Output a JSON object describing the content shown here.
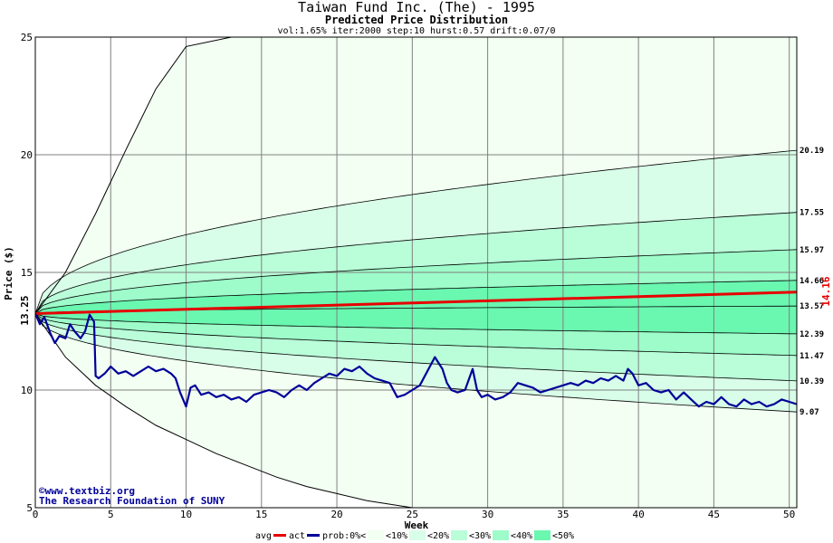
{
  "chart_data": {
    "type": "area",
    "title": "Taiwan Fund Inc. (The) - 1995",
    "subtitle": "Predicted Price Distribution",
    "params": "vol:1.65% iter:2000 step:10 hurst:0.57 drift:0.07/0",
    "xlabel": "Week",
    "ylabel": "Price ($)",
    "xlim": [
      0,
      50.5
    ],
    "ylim": [
      5,
      25
    ],
    "x_ticks": [
      0,
      5,
      10,
      15,
      20,
      25,
      30,
      35,
      40,
      45,
      50
    ],
    "y_ticks": [
      5,
      10,
      15,
      20,
      25
    ],
    "start_price": "13.25",
    "end_avg_price": "14.16",
    "grid": true,
    "percentile_bands": [
      {
        "label": "<10%",
        "color": "#f2fff2"
      },
      {
        "label": "<20%",
        "color": "#d8fde8"
      },
      {
        "label": "<30%",
        "color": "#bafdd9"
      },
      {
        "label": "<40%",
        "color": "#9dfcc9"
      },
      {
        "label": "<50%",
        "color": "#6af7b0"
      }
    ],
    "percentile_lines": [
      {
        "end": 25.0,
        "rate": 0.25,
        "clip": true
      },
      {
        "end": 20.19,
        "label": "20.19",
        "rate": 0.45
      },
      {
        "end": 17.55,
        "label": "17.55",
        "rate": 0.45
      },
      {
        "end": 15.97,
        "label": "15.97",
        "rate": 0.45
      },
      {
        "end": 14.66,
        "label": "14.66",
        "rate": 0.45
      },
      {
        "end": 13.57,
        "label": "13.57",
        "rate": 0.45
      },
      {
        "end": 12.39,
        "label": "12.39",
        "rate": 0.45
      },
      {
        "end": 11.47,
        "label": "11.47",
        "rate": 0.45
      },
      {
        "end": 10.39,
        "label": "10.39",
        "rate": 0.45
      },
      {
        "end": 9.07,
        "label": "9.07",
        "rate": 0.45
      },
      {
        "end": 5.0,
        "rate": 0.25,
        "clip": true
      }
    ],
    "outer_upper": [
      [
        0,
        13.25
      ],
      [
        2,
        15.0
      ],
      [
        4,
        17.5
      ],
      [
        6,
        20.2
      ],
      [
        8,
        22.8
      ],
      [
        10,
        24.6
      ],
      [
        13,
        25
      ]
    ],
    "outer_lower": [
      [
        0,
        13.25
      ],
      [
        2,
        11.4
      ],
      [
        4,
        10.2
      ],
      [
        6,
        9.3
      ],
      [
        8,
        8.5
      ],
      [
        10,
        7.9
      ],
      [
        12,
        7.3
      ],
      [
        14,
        6.8
      ],
      [
        16,
        6.3
      ],
      [
        18,
        5.9
      ],
      [
        20,
        5.6
      ],
      [
        22,
        5.3
      ],
      [
        25,
        5.0
      ]
    ],
    "avg_series": {
      "name": "avg",
      "x": [
        0,
        50.5
      ],
      "y": [
        13.25,
        14.16
      ]
    },
    "actual_series": {
      "name": "act",
      "x": [
        0,
        0.3,
        0.6,
        1,
        1.3,
        1.6,
        2,
        2.3,
        2.6,
        3,
        3.3,
        3.6,
        3.9,
        4,
        4.2,
        4.6,
        5,
        5.5,
        6,
        6.5,
        7,
        7.5,
        8,
        8.5,
        9,
        9.3,
        9.6,
        10,
        10.3,
        10.6,
        11,
        11.5,
        12,
        12.5,
        13,
        13.5,
        14,
        14.5,
        15,
        15.5,
        16,
        16.5,
        17,
        17.5,
        18,
        18.5,
        19,
        19.5,
        20,
        20.5,
        21,
        21.5,
        22,
        22.5,
        23,
        23.5,
        24,
        24.5,
        25,
        25.5,
        26,
        26.5,
        27,
        27.3,
        27.6,
        28,
        28.5,
        29,
        29.3,
        29.6,
        30,
        30.5,
        31,
        31.5,
        32,
        32.5,
        33,
        33.5,
        34,
        34.5,
        35,
        35.5,
        36,
        36.5,
        37,
        37.5,
        38,
        38.5,
        39,
        39.3,
        39.6,
        40,
        40.5,
        41,
        41.5,
        42,
        42.5,
        43,
        43.5,
        44,
        44.5,
        45,
        45.5,
        46,
        46.5,
        47,
        47.5,
        48,
        48.5,
        49,
        49.5,
        50,
        50.5
      ],
      "y": [
        13.25,
        12.8,
        13.1,
        12.4,
        12.0,
        12.3,
        12.2,
        12.8,
        12.5,
        12.2,
        12.5,
        13.2,
        12.9,
        10.6,
        10.5,
        10.7,
        11.0,
        10.7,
        10.8,
        10.6,
        10.8,
        11.0,
        10.8,
        10.9,
        10.7,
        10.5,
        9.9,
        9.3,
        10.1,
        10.2,
        9.8,
        9.9,
        9.7,
        9.8,
        9.6,
        9.7,
        9.5,
        9.8,
        9.9,
        10.0,
        9.9,
        9.7,
        10.0,
        10.2,
        10.0,
        10.3,
        10.5,
        10.7,
        10.6,
        10.9,
        10.8,
        11.0,
        10.7,
        10.5,
        10.4,
        10.3,
        9.7,
        9.8,
        10.0,
        10.2,
        10.8,
        11.4,
        10.9,
        10.3,
        10.0,
        9.9,
        10.0,
        10.9,
        10.0,
        9.7,
        9.8,
        9.6,
        9.7,
        9.9,
        10.3,
        10.2,
        10.1,
        9.9,
        10.0,
        10.1,
        10.2,
        10.3,
        10.2,
        10.4,
        10.3,
        10.5,
        10.4,
        10.6,
        10.4,
        10.9,
        10.7,
        10.2,
        10.3,
        10.0,
        9.9,
        10.0,
        9.6,
        9.9,
        9.6,
        9.3,
        9.5,
        9.4,
        9.7,
        9.4,
        9.3,
        9.6,
        9.4,
        9.5,
        9.3,
        9.4,
        9.6,
        9.5,
        9.4
      ]
    },
    "legend": {
      "avg": "avg",
      "act": "act",
      "prob": "prob:0%<",
      "items": [
        "<10%",
        "<20%",
        "<30%",
        "<40%",
        "<50%"
      ],
      "colors": {
        "avg": "#e60000",
        "act": "#000099"
      }
    },
    "credits": {
      "site": "©www.textbiz.org",
      "org": "The Research Foundation of SUNY"
    }
  }
}
